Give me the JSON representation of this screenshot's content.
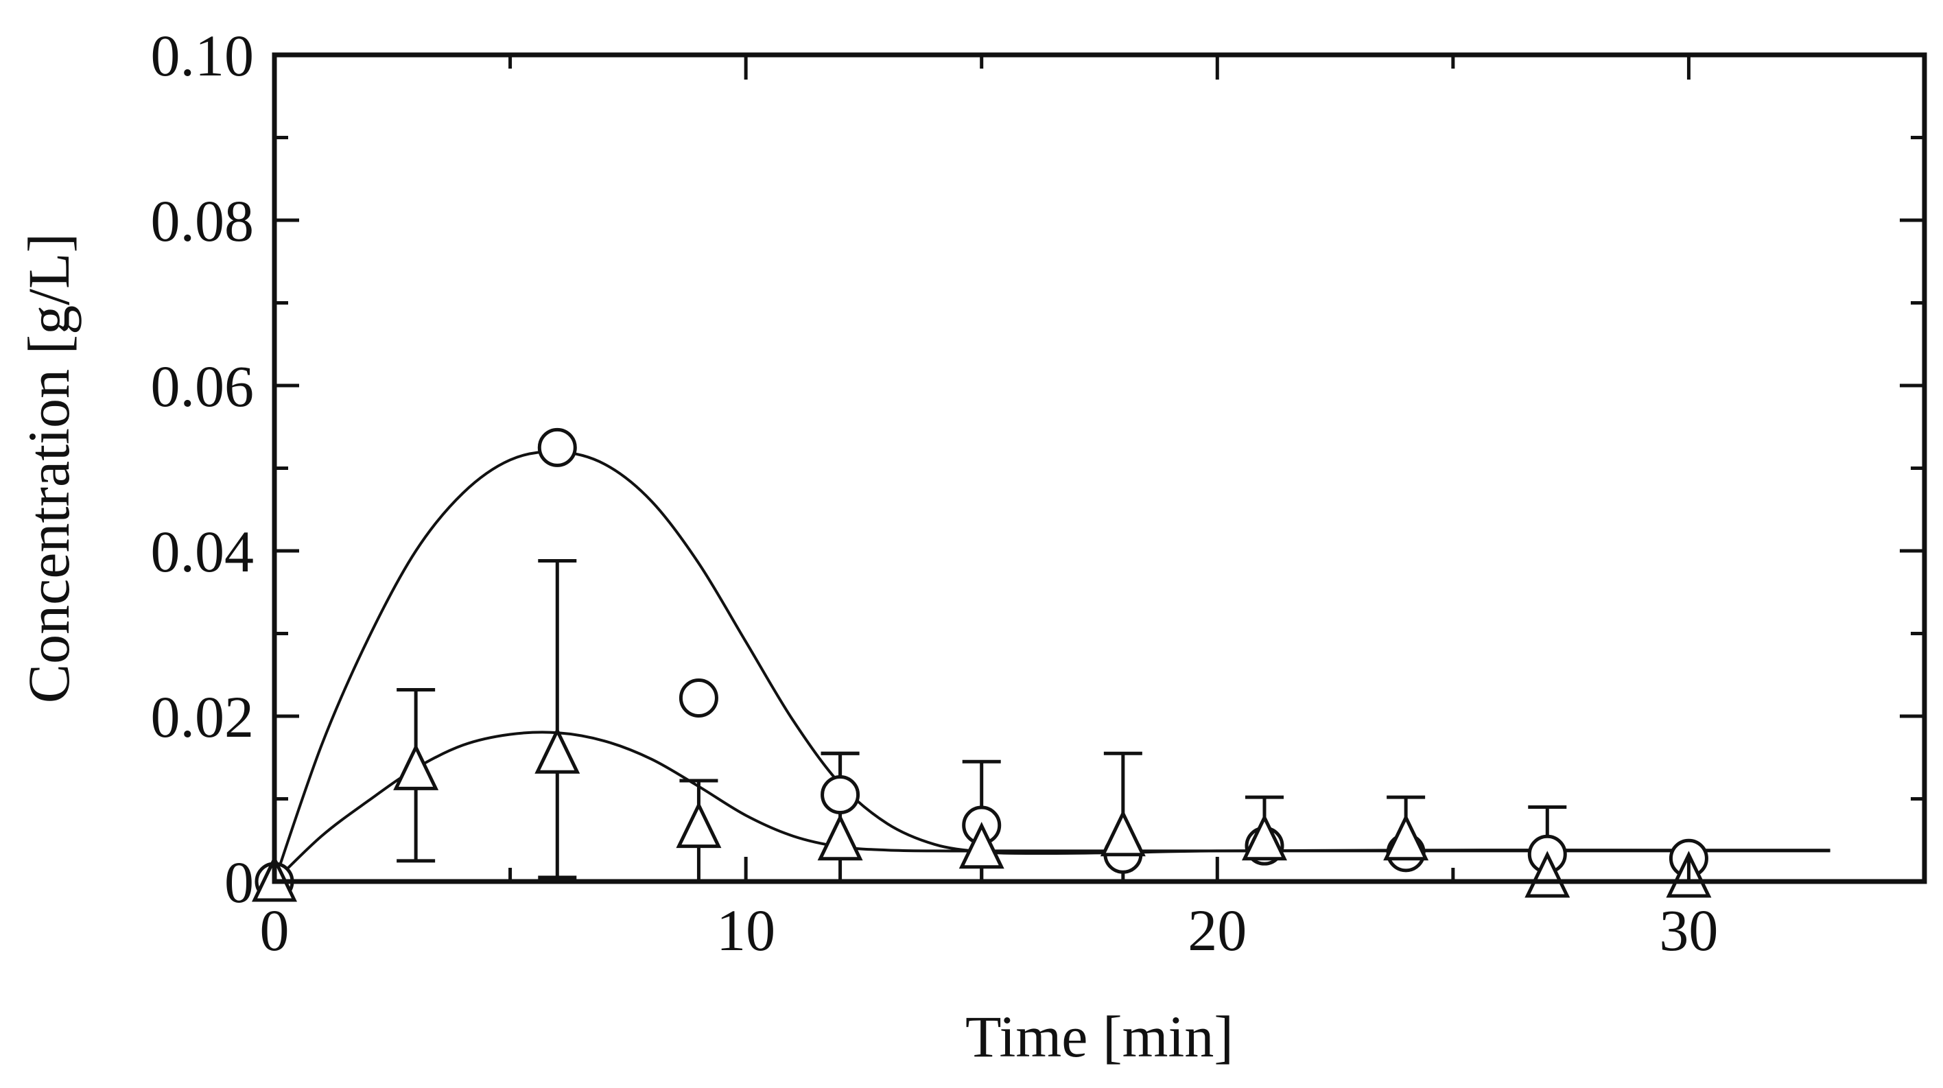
{
  "chart_data": {
    "type": "scatter",
    "title": "",
    "xlabel": "Time [min]",
    "ylabel": "Concentration [g/L]",
    "xlim": [
      0,
      35
    ],
    "ylim": [
      0,
      0.1
    ],
    "xticks": [
      0,
      10,
      20,
      30
    ],
    "yticks": [
      0,
      0.02,
      0.04,
      0.06,
      0.08,
      0.1
    ],
    "xtick_labels": [
      "0",
      "10",
      "20",
      "30"
    ],
    "ytick_labels": [
      "0",
      "0.02",
      "0.04",
      "0.06",
      "0.08",
      "0.10"
    ],
    "grid": false,
    "legend": "none",
    "series": [
      {
        "name": "circles",
        "marker": "circle",
        "x": [
          0,
          6,
          9,
          12,
          15,
          18,
          21,
          24,
          27,
          30
        ],
        "y": [
          0,
          0.0525,
          0.0222,
          0.0105,
          0.0068,
          0.0033,
          0.0043,
          0.0035,
          0.0033,
          0.0028
        ],
        "err_upper": [
          null,
          null,
          null,
          0.0155,
          0.0145,
          null,
          0.0102,
          0.0102,
          0.009,
          null
        ],
        "fit": {
          "x": [
            0,
            1,
            2,
            3,
            4,
            5,
            6,
            7,
            8,
            9,
            10,
            11,
            12,
            13,
            14,
            15,
            16,
            18,
            20,
            25,
            30,
            33
          ],
          "y": [
            0,
            0.0165,
            0.0295,
            0.04,
            0.047,
            0.051,
            0.052,
            0.0505,
            0.046,
            0.0385,
            0.029,
            0.0195,
            0.0118,
            0.007,
            0.0045,
            0.0036,
            0.0034,
            0.0035,
            0.0037,
            0.0038,
            0.0038,
            0.0038
          ]
        }
      },
      {
        "name": "triangles",
        "marker": "triangle",
        "x": [
          0,
          3,
          6,
          9,
          12,
          15,
          18,
          21,
          24,
          27,
          30
        ],
        "y": [
          0,
          0.0135,
          0.0155,
          0.0065,
          0.005,
          0.004,
          0.0055,
          0.005,
          0.005,
          0.0005,
          0.0005
        ],
        "err_upper": [
          null,
          0.0232,
          0.0388,
          0.0122,
          0.0155,
          null,
          0.0155,
          null,
          null,
          null,
          null
        ],
        "err_lower": [
          null,
          0.0025,
          0.0005,
          0.0,
          0.0,
          0.0,
          0.0,
          null,
          null,
          null,
          null
        ],
        "fit": {
          "x": [
            0,
            1,
            2,
            3,
            4,
            5,
            6,
            7,
            8,
            9,
            10,
            11,
            12,
            13,
            14,
            15,
            16,
            18,
            20,
            25,
            30,
            33
          ],
          "y": [
            0,
            0.0055,
            0.0098,
            0.0137,
            0.0165,
            0.0178,
            0.018,
            0.017,
            0.0148,
            0.0115,
            0.008,
            0.0055,
            0.0042,
            0.0038,
            0.0037,
            0.0037,
            0.0037,
            0.0037,
            0.0037,
            0.0037,
            0.0037,
            0.0037
          ]
        }
      }
    ]
  }
}
